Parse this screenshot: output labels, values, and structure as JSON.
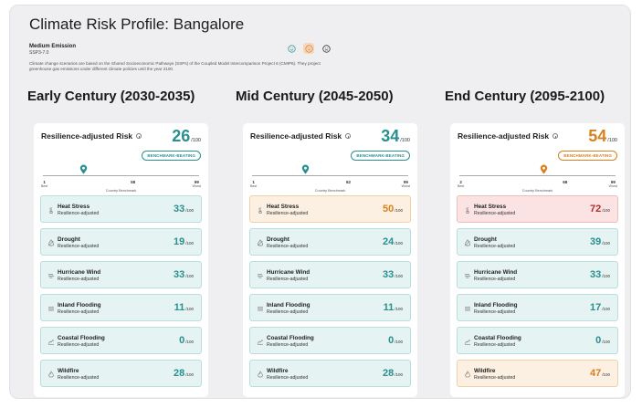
{
  "title": "Climate Risk Profile: Bangalore",
  "emission": {
    "name": "Medium Emission",
    "code": "SSP3-7.0",
    "description": "Climate change scenarios are based on the Shared Socioeconomic Pathways (SSPs) of the Coupled Model Intercomparison Project 6 (CMIP6). They project greenhouse gas emissions under different climate policies until the year 2100."
  },
  "scenario_selector": {
    "options": [
      "low-emission-face-icon",
      "medium-emission-face-icon",
      "high-emission-face-icon"
    ],
    "selected": "medium-emission-face-icon"
  },
  "colors": {
    "teal": "#2a8f8f",
    "orange": "#d9801f",
    "red": "#b03030"
  },
  "periods": [
    {
      "heading": "Early Century (2030-2035)",
      "risk_label": "Resilience-adjusted Risk",
      "score": "26",
      "denominator": "/100",
      "score_color": "#2a8f8f",
      "badge": "BENCHMARK-BEATING",
      "badge_color": "#2a8f8f",
      "marker": 26,
      "marker_color": "#2a8f8f",
      "scale": {
        "best": "1",
        "benchmark": "58",
        "worst": "99",
        "best_label": "Best",
        "worst_label": "Worst",
        "benchmark_label": "Country Benchmark"
      },
      "risks": [
        {
          "name": "Heat Stress",
          "sub": "Resilience-adjusted",
          "score": "33",
          "den": "/100",
          "level": "ok",
          "icon": "thermometer-icon"
        },
        {
          "name": "Drought",
          "sub": "Resilience-adjusted",
          "score": "19",
          "den": "/100",
          "level": "ok",
          "icon": "drought-icon"
        },
        {
          "name": "Hurricane Wind",
          "sub": "Resilience-adjusted",
          "score": "33",
          "den": "/100",
          "level": "ok",
          "icon": "wind-icon"
        },
        {
          "name": "Inland Flooding",
          "sub": "Resilience-adjusted",
          "score": "11",
          "den": "/100",
          "level": "ok",
          "icon": "flood-icon"
        },
        {
          "name": "Coastal Flooding",
          "sub": "Resilience-adjusted",
          "score": "0",
          "den": "/100",
          "level": "ok",
          "icon": "coastal-flood-icon"
        },
        {
          "name": "Wildfire",
          "sub": "Resilience-adjusted",
          "score": "28",
          "den": "/100",
          "level": "ok",
          "icon": "fire-icon"
        }
      ]
    },
    {
      "heading": "Mid Century (2045-2050)",
      "risk_label": "Resilience-adjusted Risk",
      "score": "34",
      "denominator": "/100",
      "score_color": "#2a8f8f",
      "badge": "BENCHMARK-BEATING",
      "badge_color": "#2a8f8f",
      "marker": 34,
      "marker_color": "#2a8f8f",
      "scale": {
        "best": "1",
        "benchmark": "62",
        "worst": "99",
        "best_label": "Best",
        "worst_label": "Worst",
        "benchmark_label": "Country Benchmark"
      },
      "risks": [
        {
          "name": "Heat Stress",
          "sub": "Resilience-adjusted",
          "score": "50",
          "den": "/100",
          "level": "warn",
          "icon": "thermometer-icon"
        },
        {
          "name": "Drought",
          "sub": "Resilience-adjusted",
          "score": "24",
          "den": "/100",
          "level": "ok",
          "icon": "drought-icon"
        },
        {
          "name": "Hurricane Wind",
          "sub": "Resilience-adjusted",
          "score": "33",
          "den": "/100",
          "level": "ok",
          "icon": "wind-icon"
        },
        {
          "name": "Inland Flooding",
          "sub": "Resilience-adjusted",
          "score": "11",
          "den": "/100",
          "level": "ok",
          "icon": "flood-icon"
        },
        {
          "name": "Coastal Flooding",
          "sub": "Resilience-adjusted",
          "score": "0",
          "den": "/100",
          "level": "ok",
          "icon": "coastal-flood-icon"
        },
        {
          "name": "Wildfire",
          "sub": "Resilience-adjusted",
          "score": "28",
          "den": "/100",
          "level": "ok",
          "icon": "fire-icon"
        }
      ]
    },
    {
      "heading": "End Century (2095-2100)",
      "risk_label": "Resilience-adjusted Risk",
      "score": "54",
      "denominator": "/100",
      "score_color": "#d9801f",
      "badge": "BENCHMARK-BEATING",
      "badge_color": "#d9801f",
      "marker": 54,
      "marker_color": "#d9801f",
      "scale": {
        "best": "2",
        "benchmark": "68",
        "worst": "99",
        "best_label": "Best",
        "worst_label": "Worst",
        "benchmark_label": "Country Benchmark"
      },
      "risks": [
        {
          "name": "Heat Stress",
          "sub": "Resilience-adjusted",
          "score": "72",
          "den": "/100",
          "level": "danger",
          "icon": "thermometer-icon"
        },
        {
          "name": "Drought",
          "sub": "Resilience-adjusted",
          "score": "39",
          "den": "/100",
          "level": "ok",
          "icon": "drought-icon"
        },
        {
          "name": "Hurricane Wind",
          "sub": "Resilience-adjusted",
          "score": "33",
          "den": "/100",
          "level": "ok",
          "icon": "wind-icon"
        },
        {
          "name": "Inland Flooding",
          "sub": "Resilience-adjusted",
          "score": "17",
          "den": "/100",
          "level": "ok",
          "icon": "flood-icon"
        },
        {
          "name": "Coastal Flooding",
          "sub": "Resilience-adjusted",
          "score": "0",
          "den": "/100",
          "level": "ok",
          "icon": "coastal-flood-icon"
        },
        {
          "name": "Wildfire",
          "sub": "Resilience-adjusted",
          "score": "47",
          "den": "/100",
          "level": "warn",
          "icon": "fire-icon"
        }
      ]
    }
  ]
}
